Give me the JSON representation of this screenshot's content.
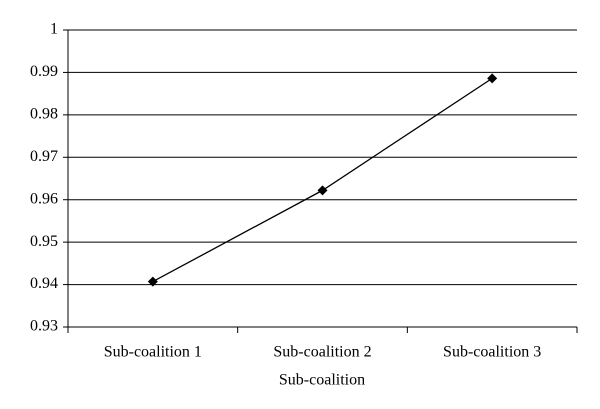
{
  "chart_data": {
    "type": "line",
    "x_label": "Sub-coalition",
    "categories": [
      "Sub-coalition 1",
      "Sub-coalition 2",
      "Sub-coalition 3"
    ],
    "values": [
      0.9407,
      0.9622,
      0.9886
    ],
    "color": "#000000",
    "ylim": [
      0.93,
      1
    ],
    "yticks": [
      0.93,
      0.94,
      0.95,
      0.96,
      0.97,
      0.98,
      0.99,
      1
    ],
    "grid": true
  }
}
